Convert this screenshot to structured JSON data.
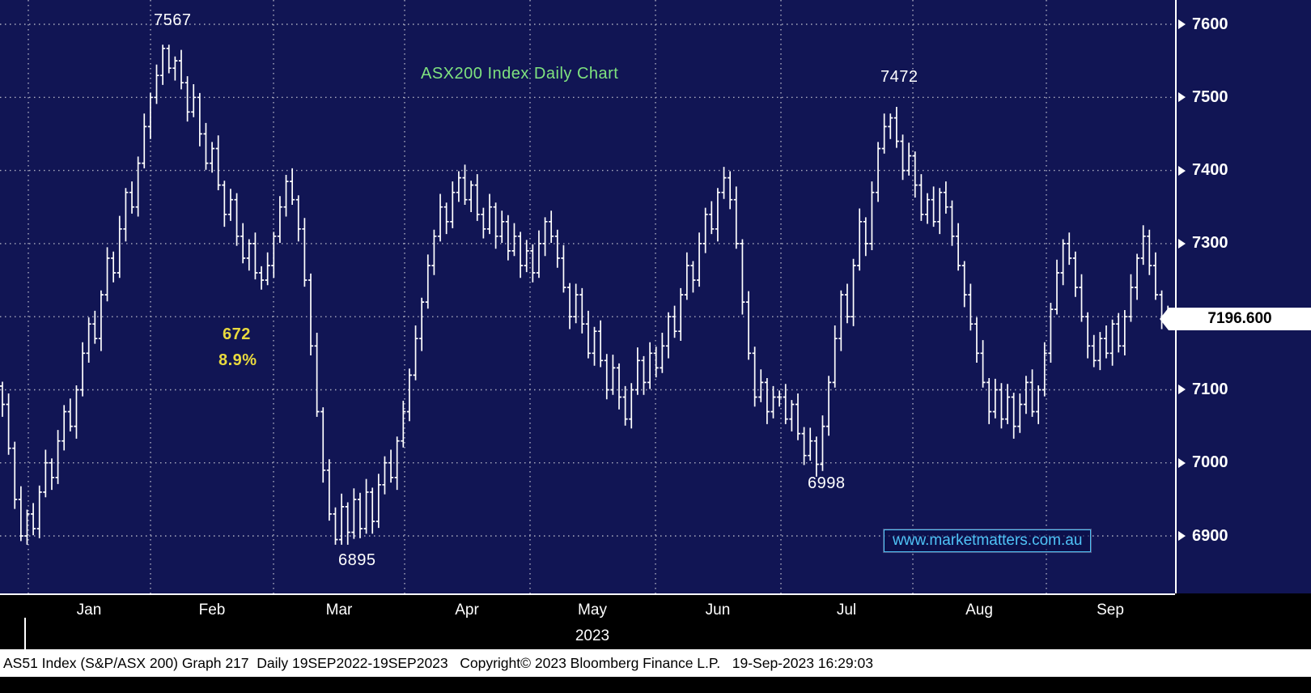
{
  "colors": {
    "background_navy": "#111554",
    "bar_white": "#ffffff",
    "title_green": "#7fe37f",
    "annotation_yellow": "#e9da3e",
    "watermark_cyan": "#4fc3f7",
    "grid_dot": "#c8c8d4"
  },
  "chart_data": {
    "type": "bar",
    "style": "ohlc-daily-bars",
    "title": "ASX200 Index Daily Chart",
    "x_axis": {
      "months": [
        "Jan",
        "Feb",
        "Mar",
        "Apr",
        "May",
        "Jun",
        "Jul",
        "Aug",
        "Sep"
      ],
      "year_label": "2023"
    },
    "y_axis": {
      "ticks": [
        7600,
        7500,
        7400,
        7300,
        7200,
        7100,
        7000,
        6900
      ],
      "min": 6830,
      "max": 7630,
      "grid": "dotted"
    },
    "series": [
      {
        "name": "AS51 Index (S&P/ASX 200)",
        "frequency": "Daily",
        "closes": [
          7080,
          7020,
          6950,
          6900,
          6930,
          6910,
          6960,
          7000,
          6980,
          7030,
          7070,
          7050,
          7100,
          7150,
          7190,
          7170,
          7230,
          7280,
          7260,
          7320,
          7370,
          7350,
          7410,
          7460,
          7500,
          7530,
          7567,
          7540,
          7550,
          7520,
          7480,
          7500,
          7450,
          7410,
          7430,
          7380,
          7340,
          7360,
          7310,
          7280,
          7300,
          7260,
          7250,
          7270,
          7310,
          7350,
          7385,
          7360,
          7320,
          7250,
          7160,
          7070,
          6990,
          6930,
          6895,
          6940,
          6905,
          6950,
          6910,
          6960,
          6920,
          6970,
          7000,
          6980,
          7030,
          7070,
          7120,
          7170,
          7220,
          7270,
          7310,
          7350,
          7330,
          7370,
          7390,
          7360,
          7380,
          7340,
          7320,
          7350,
          7310,
          7330,
          7290,
          7310,
          7270,
          7290,
          7260,
          7300,
          7330,
          7310,
          7280,
          7240,
          7200,
          7230,
          7190,
          7150,
          7180,
          7140,
          7100,
          7130,
          7090,
          7060,
          7100,
          7140,
          7110,
          7150,
          7130,
          7160,
          7200,
          7180,
          7230,
          7270,
          7250,
          7300,
          7340,
          7320,
          7370,
          7390,
          7360,
          7300,
          7220,
          7150,
          7090,
          7110,
          7070,
          7090,
          7090,
          7060,
          7080,
          7040,
          7010,
          7030,
          6998,
          7050,
          7110,
          7170,
          7230,
          7200,
          7270,
          7330,
          7300,
          7370,
          7430,
          7460,
          7472,
          7440,
          7400,
          7420,
          7380,
          7340,
          7360,
          7330,
          7370,
          7350,
          7310,
          7270,
          7230,
          7190,
          7150,
          7110,
          7070,
          7100,
          7060,
          7090,
          7050,
          7080,
          7110,
          7070,
          7100,
          7150,
          7210,
          7260,
          7300,
          7280,
          7240,
          7200,
          7160,
          7140,
          7170,
          7150,
          7190,
          7160,
          7200,
          7240,
          7280,
          7310,
          7270,
          7230,
          7200,
          7196.6
        ]
      }
    ],
    "annotations": {
      "feb_high": "7567",
      "jul_high": "7472",
      "mar_low": "6895",
      "jul_low": "6998",
      "range_points": "672",
      "range_pct": "8.9%"
    },
    "last_price": "7196.600"
  },
  "overlays": {
    "watermark": "www.marketmatters.com.au"
  },
  "footer": {
    "text": "AS51 Index (S&P/ASX 200) Graph 217  Daily 19SEP2022-19SEP2023   Copyright© 2023 Bloomberg Finance L.P.   19-Sep-2023 16:29:03"
  }
}
